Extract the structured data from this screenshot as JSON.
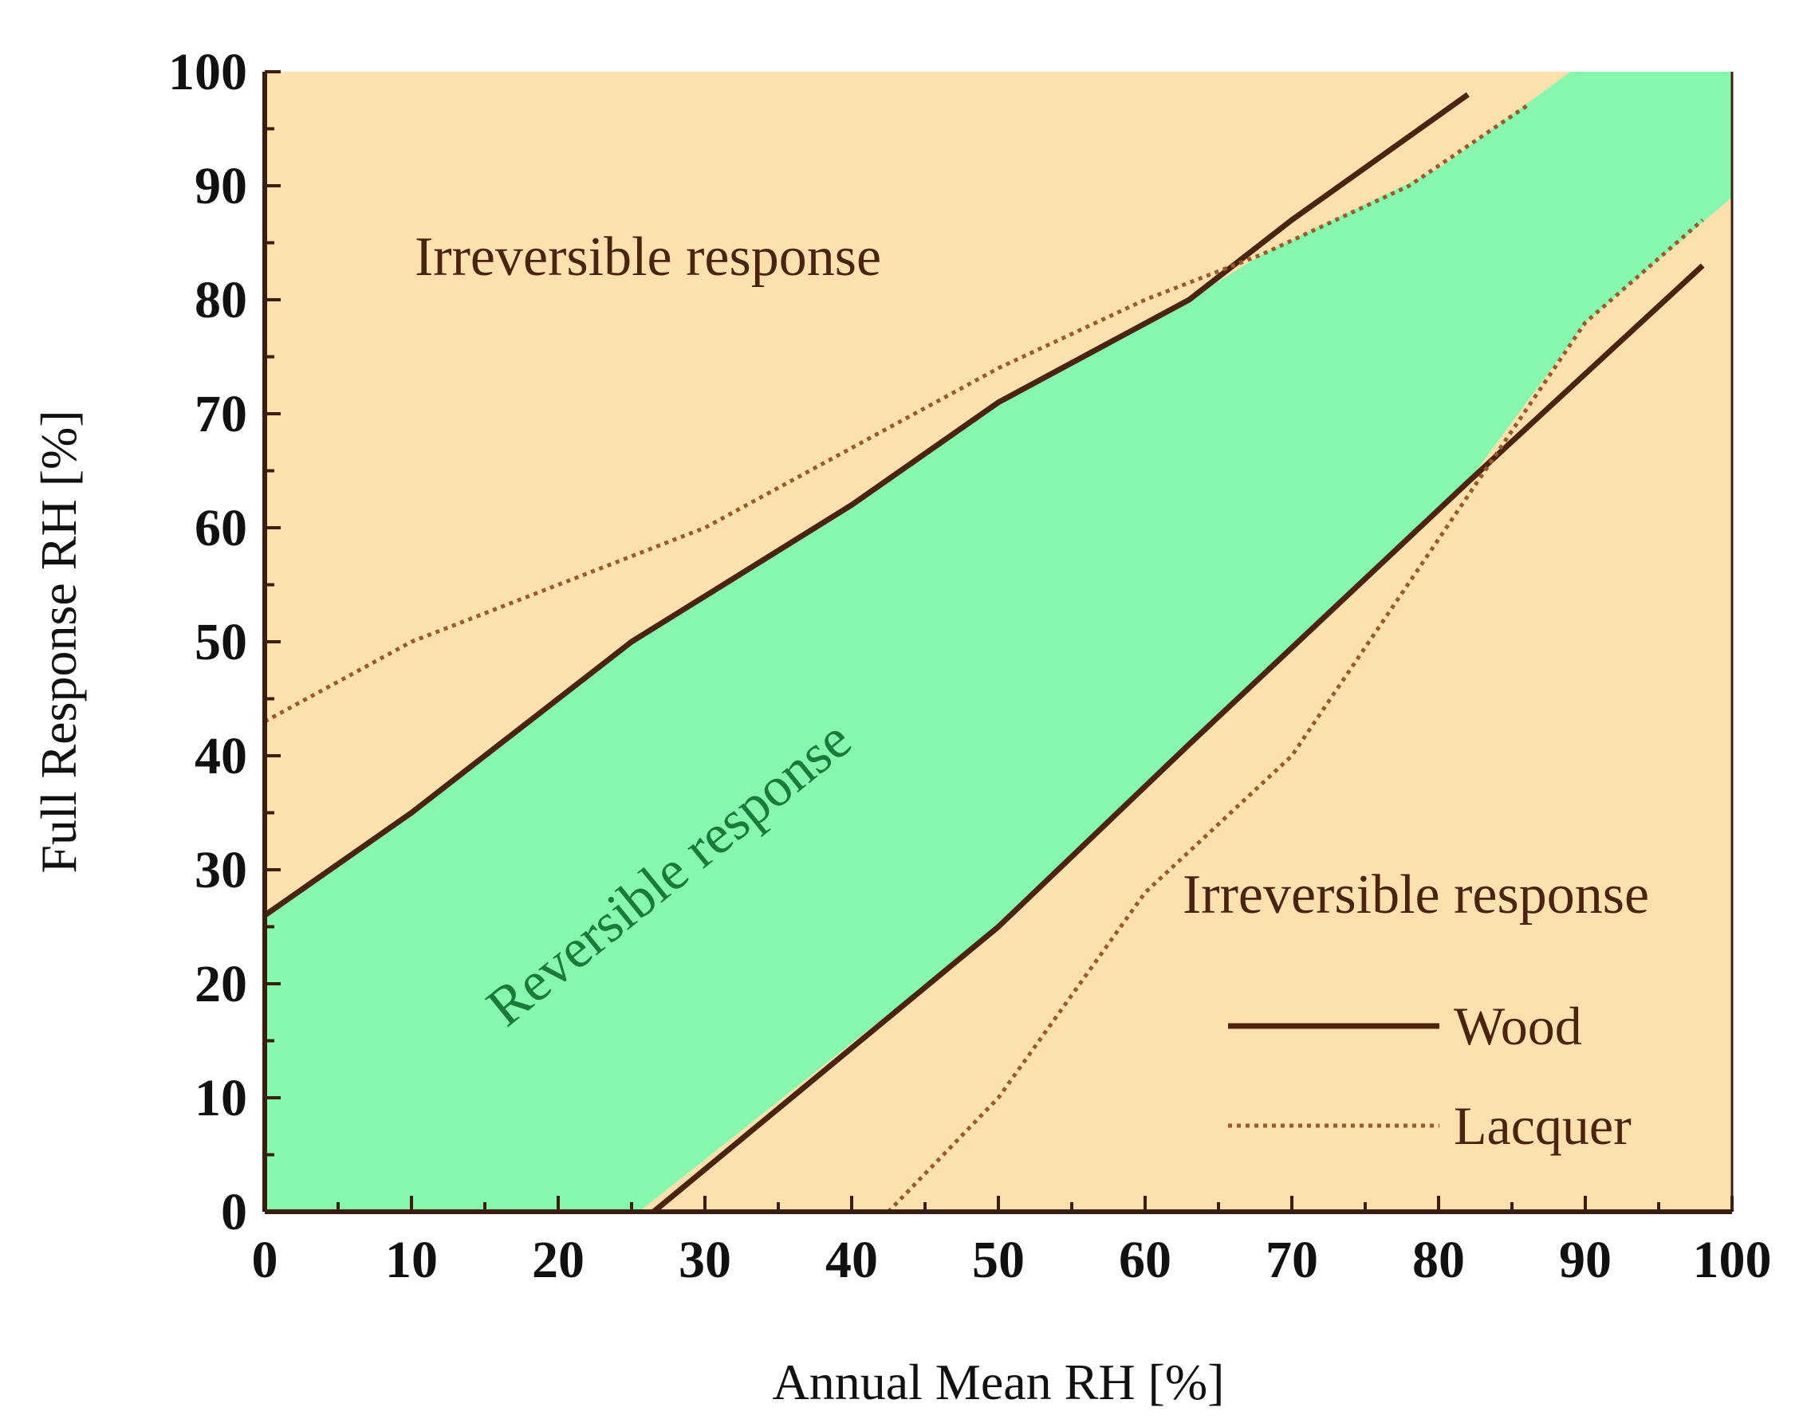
{
  "chart_data": {
    "type": "area",
    "title": "",
    "xlabel": "Annual  Mean RH [%]",
    "ylabel": "Full Response RH [%]",
    "xlim": [
      0,
      100
    ],
    "ylim": [
      0,
      100
    ],
    "xticks": [
      0,
      10,
      20,
      30,
      40,
      50,
      60,
      70,
      80,
      90,
      100
    ],
    "yticks": [
      0,
      10,
      20,
      30,
      40,
      50,
      60,
      70,
      80,
      90,
      100
    ],
    "xtick_labels": [
      "0",
      "10",
      "20",
      "30",
      "40",
      "50",
      "60",
      "70",
      "80",
      "90",
      "100"
    ],
    "ytick_labels": [
      "0",
      "10",
      "20",
      "30",
      "40",
      "50",
      "60",
      "70",
      "80",
      "90",
      "100"
    ],
    "grid": false,
    "legend_position": "bottom-right",
    "reversible_region": [
      [
        0,
        0
      ],
      [
        25.5,
        0
      ],
      [
        50,
        25
      ],
      [
        63,
        41
      ],
      [
        82,
        64
      ],
      [
        90,
        78
      ],
      [
        100,
        89
      ],
      [
        100,
        100
      ],
      [
        89,
        100
      ],
      [
        80,
        91.5
      ],
      [
        68,
        84
      ],
      [
        63,
        80
      ],
      [
        50,
        71
      ],
      [
        40,
        62
      ],
      [
        25,
        50
      ],
      [
        10,
        35
      ],
      [
        0,
        26
      ]
    ],
    "series": [
      {
        "name": "Wood",
        "style": "solid",
        "segments": [
          [
            [
              0,
              26
            ],
            [
              10,
              35
            ],
            [
              25,
              50
            ],
            [
              40,
              62
            ],
            [
              50,
              71
            ],
            [
              63,
              80
            ],
            [
              70,
              87
            ],
            [
              82,
              98
            ]
          ],
          [
            [
              26.5,
              0
            ],
            [
              50,
              25
            ],
            [
              63,
              41
            ],
            [
              82,
              64
            ],
            [
              98,
              83
            ]
          ]
        ]
      },
      {
        "name": "Lacquer",
        "style": "dotted",
        "segments": [
          [
            [
              0,
              43
            ],
            [
              10,
              50
            ],
            [
              20,
              55
            ],
            [
              30,
              60
            ],
            [
              40,
              67
            ],
            [
              50,
              74
            ],
            [
              60,
              80
            ],
            [
              68,
              84
            ],
            [
              78,
              90
            ],
            [
              86,
              97
            ]
          ],
          [
            [
              42.5,
              0
            ],
            [
              50,
              10
            ],
            [
              60,
              28
            ],
            [
              70,
              40
            ],
            [
              80,
              59
            ],
            [
              90,
              78
            ],
            [
              98,
              87
            ]
          ]
        ]
      }
    ],
    "annotations": {
      "upper_region": "Irreversible response",
      "lower_region": "Irreversible response",
      "middle_region": "Reversible response"
    },
    "legend": [
      {
        "label": "Wood",
        "style": "solid"
      },
      {
        "label": "Lacquer",
        "style": "dotted"
      }
    ],
    "colors": {
      "background": "#fce0ae",
      "reversible": "#86f7ad",
      "wood": "#4a2410",
      "lacquer": "#9a5a2a",
      "axis": "#3a1e10",
      "reversible_text": "#1a7a3a",
      "irreversible_text": "#4a2410"
    }
  }
}
